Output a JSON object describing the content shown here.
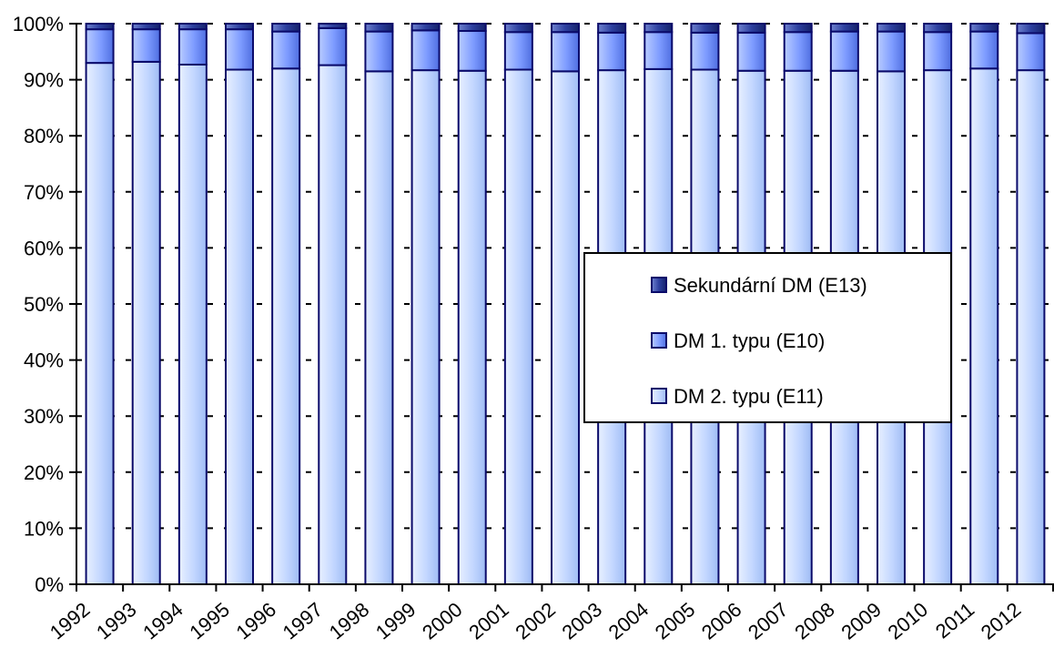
{
  "chart_data": {
    "type": "bar",
    "stacked": "percent",
    "title": "",
    "xlabel": "",
    "ylabel": "",
    "ylim": [
      0,
      100
    ],
    "yticks": [
      "0%",
      "10%",
      "20%",
      "30%",
      "40%",
      "50%",
      "60%",
      "70%",
      "80%",
      "90%",
      "100%"
    ],
    "categories": [
      "1992",
      "1993",
      "1994",
      "1995",
      "1996",
      "1997",
      "1998",
      "1999",
      "2000",
      "2001",
      "2002",
      "2003",
      "2004",
      "2005",
      "2006",
      "2007",
      "2008",
      "2009",
      "2010",
      "2011",
      "2012"
    ],
    "grid": "horizontal dashed",
    "legend_position": "center-right",
    "series": [
      {
        "name": "DM 2. typu (E11)",
        "color": "#c6dbff",
        "values": [
          93.0,
          93.2,
          92.7,
          91.8,
          92.0,
          92.6,
          91.5,
          91.7,
          91.6,
          91.8,
          91.5,
          91.7,
          91.9,
          91.8,
          91.6,
          91.6,
          91.6,
          91.5,
          91.7,
          92.0,
          91.7
        ]
      },
      {
        "name": "DM 1. typu (E10)",
        "color": "#7e9dff",
        "values": [
          6.0,
          5.8,
          6.3,
          7.2,
          6.6,
          6.6,
          7.1,
          7.1,
          7.1,
          6.7,
          7.0,
          6.7,
          6.6,
          6.6,
          6.8,
          6.9,
          7.0,
          7.1,
          6.8,
          6.6,
          6.6
        ]
      },
      {
        "name": "Sekundární DM (E13)",
        "color": "#2a3e9a",
        "values": [
          1.0,
          1.0,
          1.0,
          1.0,
          1.4,
          0.8,
          1.4,
          1.2,
          1.3,
          1.5,
          1.5,
          1.6,
          1.5,
          1.6,
          1.6,
          1.5,
          1.4,
          1.4,
          1.5,
          1.4,
          1.7
        ]
      }
    ],
    "legend_order": [
      "Sekundární DM (E13)",
      "DM 1. typu (E10)",
      "DM 2. typu (E11)"
    ]
  }
}
